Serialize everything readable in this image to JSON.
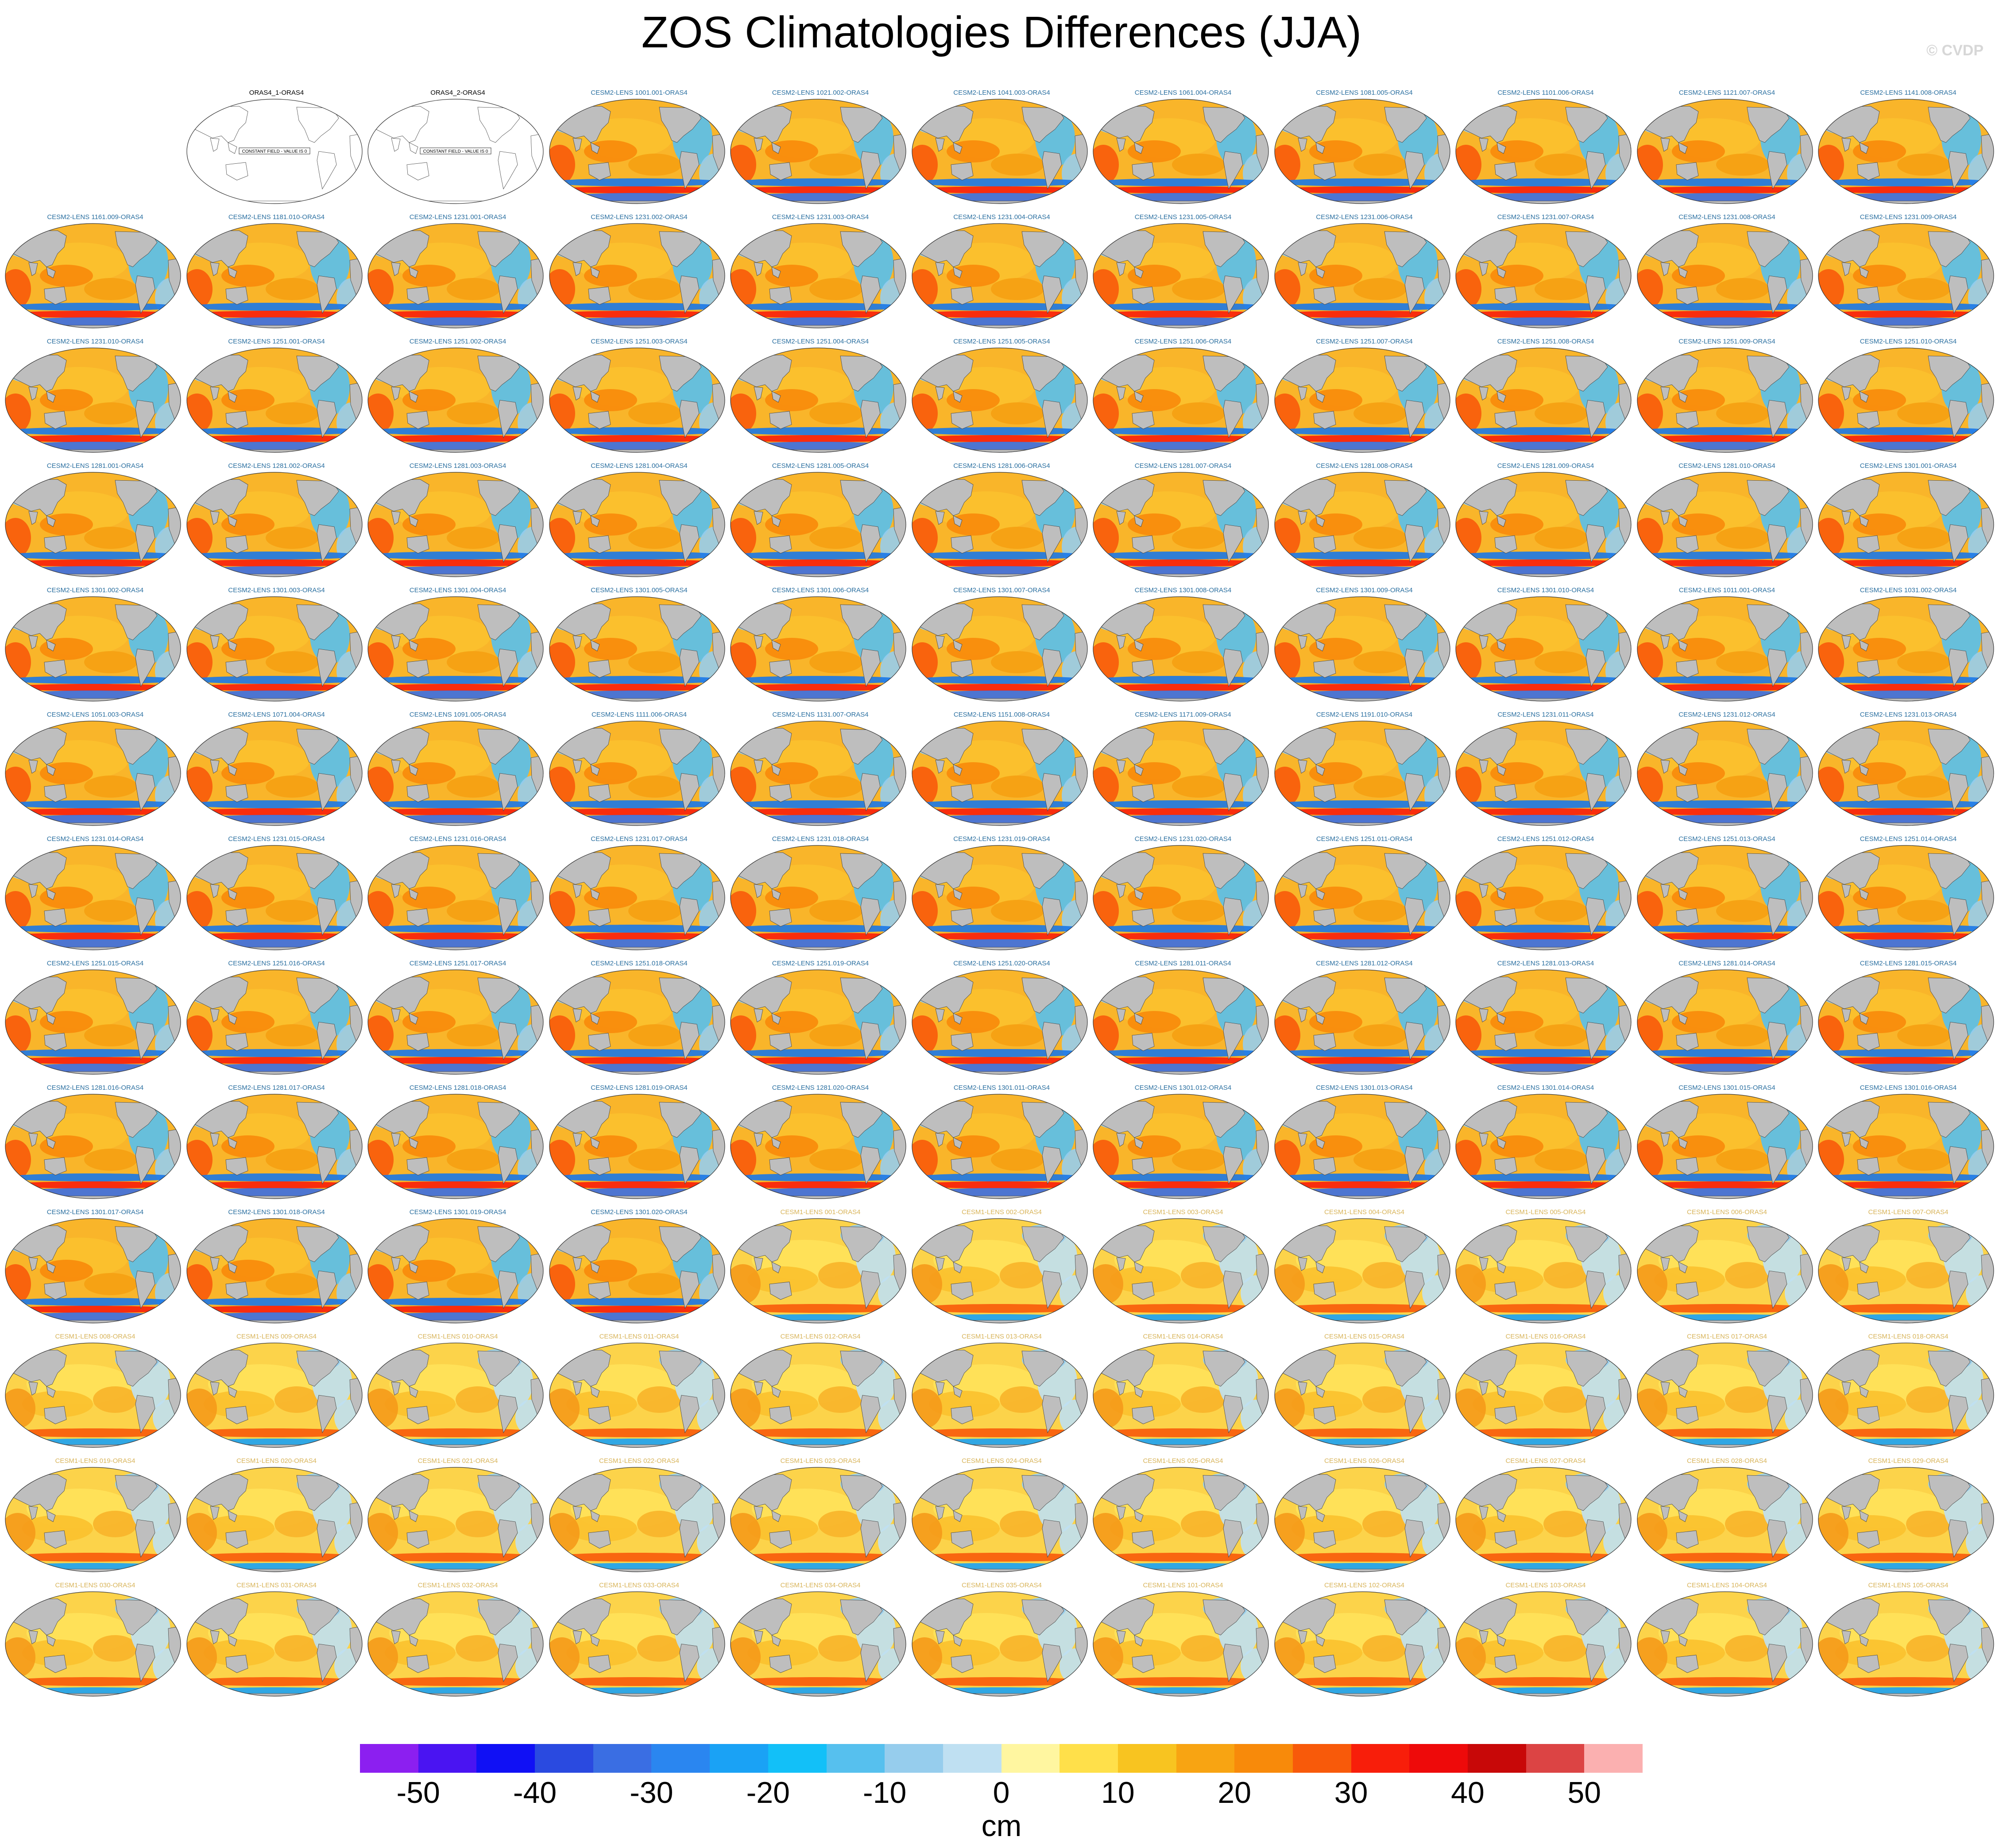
{
  "title": "ZOS Climatologies Differences (JJA)",
  "watermark": "© CVDP",
  "colors": {
    "land": "#bebebe",
    "cesm2_label": "#2a6fa0",
    "cesm1_label": "#d8b45a",
    "oras_label": "#000000"
  },
  "panels": [
    {
      "label": "",
      "kind": "empty"
    },
    {
      "label": "ORAS4_1-ORAS4",
      "kind": "constant",
      "note": "CONSTANT FIELD - VALUE IS 0"
    },
    {
      "label": "ORAS4_2-ORAS4",
      "kind": "constant",
      "note": "CONSTANT FIELD - VALUE IS 0"
    },
    {
      "label": "CESM2-LENS 1001.001-ORAS4",
      "kind": "cesm2"
    },
    {
      "label": "CESM2-LENS 1021.002-ORAS4",
      "kind": "cesm2"
    },
    {
      "label": "CESM2-LENS 1041.003-ORAS4",
      "kind": "cesm2"
    },
    {
      "label": "CESM2-LENS 1061.004-ORAS4",
      "kind": "cesm2"
    },
    {
      "label": "CESM2-LENS 1081.005-ORAS4",
      "kind": "cesm2"
    },
    {
      "label": "CESM2-LENS 1101.006-ORAS4",
      "kind": "cesm2"
    },
    {
      "label": "CESM2-LENS 1121.007-ORAS4",
      "kind": "cesm2"
    },
    {
      "label": "CESM2-LENS 1141.008-ORAS4",
      "kind": "cesm2"
    },
    {
      "label": "CESM2-LENS 1161.009-ORAS4",
      "kind": "cesm2"
    },
    {
      "label": "CESM2-LENS 1181.010-ORAS4",
      "kind": "cesm2"
    },
    {
      "label": "CESM2-LENS 1231.001-ORAS4",
      "kind": "cesm2"
    },
    {
      "label": "CESM2-LENS 1231.002-ORAS4",
      "kind": "cesm2"
    },
    {
      "label": "CESM2-LENS 1231.003-ORAS4",
      "kind": "cesm2"
    },
    {
      "label": "CESM2-LENS 1231.004-ORAS4",
      "kind": "cesm2"
    },
    {
      "label": "CESM2-LENS 1231.005-ORAS4",
      "kind": "cesm2"
    },
    {
      "label": "CESM2-LENS 1231.006-ORAS4",
      "kind": "cesm2"
    },
    {
      "label": "CESM2-LENS 1231.007-ORAS4",
      "kind": "cesm2"
    },
    {
      "label": "CESM2-LENS 1231.008-ORAS4",
      "kind": "cesm2"
    },
    {
      "label": "CESM2-LENS 1231.009-ORAS4",
      "kind": "cesm2"
    },
    {
      "label": "CESM2-LENS 1231.010-ORAS4",
      "kind": "cesm2"
    },
    {
      "label": "CESM2-LENS 1251.001-ORAS4",
      "kind": "cesm2"
    },
    {
      "label": "CESM2-LENS 1251.002-ORAS4",
      "kind": "cesm2"
    },
    {
      "label": "CESM2-LENS 1251.003-ORAS4",
      "kind": "cesm2"
    },
    {
      "label": "CESM2-LENS 1251.004-ORAS4",
      "kind": "cesm2"
    },
    {
      "label": "CESM2-LENS 1251.005-ORAS4",
      "kind": "cesm2"
    },
    {
      "label": "CESM2-LENS 1251.006-ORAS4",
      "kind": "cesm2"
    },
    {
      "label": "CESM2-LENS 1251.007-ORAS4",
      "kind": "cesm2"
    },
    {
      "label": "CESM2-LENS 1251.008-ORAS4",
      "kind": "cesm2"
    },
    {
      "label": "CESM2-LENS 1251.009-ORAS4",
      "kind": "cesm2"
    },
    {
      "label": "CESM2-LENS 1251.010-ORAS4",
      "kind": "cesm2"
    },
    {
      "label": "CESM2-LENS 1281.001-ORAS4",
      "kind": "cesm2"
    },
    {
      "label": "CESM2-LENS 1281.002-ORAS4",
      "kind": "cesm2"
    },
    {
      "label": "CESM2-LENS 1281.003-ORAS4",
      "kind": "cesm2"
    },
    {
      "label": "CESM2-LENS 1281.004-ORAS4",
      "kind": "cesm2"
    },
    {
      "label": "CESM2-LENS 1281.005-ORAS4",
      "kind": "cesm2"
    },
    {
      "label": "CESM2-LENS 1281.006-ORAS4",
      "kind": "cesm2"
    },
    {
      "label": "CESM2-LENS 1281.007-ORAS4",
      "kind": "cesm2"
    },
    {
      "label": "CESM2-LENS 1281.008-ORAS4",
      "kind": "cesm2"
    },
    {
      "label": "CESM2-LENS 1281.009-ORAS4",
      "kind": "cesm2"
    },
    {
      "label": "CESM2-LENS 1281.010-ORAS4",
      "kind": "cesm2"
    },
    {
      "label": "CESM2-LENS 1301.001-ORAS4",
      "kind": "cesm2"
    },
    {
      "label": "CESM2-LENS 1301.002-ORAS4",
      "kind": "cesm2"
    },
    {
      "label": "CESM2-LENS 1301.003-ORAS4",
      "kind": "cesm2"
    },
    {
      "label": "CESM2-LENS 1301.004-ORAS4",
      "kind": "cesm2"
    },
    {
      "label": "CESM2-LENS 1301.005-ORAS4",
      "kind": "cesm2"
    },
    {
      "label": "CESM2-LENS 1301.006-ORAS4",
      "kind": "cesm2"
    },
    {
      "label": "CESM2-LENS 1301.007-ORAS4",
      "kind": "cesm2"
    },
    {
      "label": "CESM2-LENS 1301.008-ORAS4",
      "kind": "cesm2"
    },
    {
      "label": "CESM2-LENS 1301.009-ORAS4",
      "kind": "cesm2"
    },
    {
      "label": "CESM2-LENS 1301.010-ORAS4",
      "kind": "cesm2"
    },
    {
      "label": "CESM2-LENS 1011.001-ORAS4",
      "kind": "cesm2"
    },
    {
      "label": "CESM2-LENS 1031.002-ORAS4",
      "kind": "cesm2"
    },
    {
      "label": "CESM2-LENS 1051.003-ORAS4",
      "kind": "cesm2"
    },
    {
      "label": "CESM2-LENS 1071.004-ORAS4",
      "kind": "cesm2"
    },
    {
      "label": "CESM2-LENS 1091.005-ORAS4",
      "kind": "cesm2"
    },
    {
      "label": "CESM2-LENS 1111.006-ORAS4",
      "kind": "cesm2"
    },
    {
      "label": "CESM2-LENS 1131.007-ORAS4",
      "kind": "cesm2"
    },
    {
      "label": "CESM2-LENS 1151.008-ORAS4",
      "kind": "cesm2"
    },
    {
      "label": "CESM2-LENS 1171.009-ORAS4",
      "kind": "cesm2"
    },
    {
      "label": "CESM2-LENS 1191.010-ORAS4",
      "kind": "cesm2"
    },
    {
      "label": "CESM2-LENS 1231.011-ORAS4",
      "kind": "cesm2"
    },
    {
      "label": "CESM2-LENS 1231.012-ORAS4",
      "kind": "cesm2"
    },
    {
      "label": "CESM2-LENS 1231.013-ORAS4",
      "kind": "cesm2"
    },
    {
      "label": "CESM2-LENS 1231.014-ORAS4",
      "kind": "cesm2"
    },
    {
      "label": "CESM2-LENS 1231.015-ORAS4",
      "kind": "cesm2"
    },
    {
      "label": "CESM2-LENS 1231.016-ORAS4",
      "kind": "cesm2"
    },
    {
      "label": "CESM2-LENS 1231.017-ORAS4",
      "kind": "cesm2"
    },
    {
      "label": "CESM2-LENS 1231.018-ORAS4",
      "kind": "cesm2"
    },
    {
      "label": "CESM2-LENS 1231.019-ORAS4",
      "kind": "cesm2"
    },
    {
      "label": "CESM2-LENS 1231.020-ORAS4",
      "kind": "cesm2"
    },
    {
      "label": "CESM2-LENS 1251.011-ORAS4",
      "kind": "cesm2"
    },
    {
      "label": "CESM2-LENS 1251.012-ORAS4",
      "kind": "cesm2"
    },
    {
      "label": "CESM2-LENS 1251.013-ORAS4",
      "kind": "cesm2"
    },
    {
      "label": "CESM2-LENS 1251.014-ORAS4",
      "kind": "cesm2"
    },
    {
      "label": "CESM2-LENS 1251.015-ORAS4",
      "kind": "cesm2"
    },
    {
      "label": "CESM2-LENS 1251.016-ORAS4",
      "kind": "cesm2"
    },
    {
      "label": "CESM2-LENS 1251.017-ORAS4",
      "kind": "cesm2"
    },
    {
      "label": "CESM2-LENS 1251.018-ORAS4",
      "kind": "cesm2"
    },
    {
      "label": "CESM2-LENS 1251.019-ORAS4",
      "kind": "cesm2"
    },
    {
      "label": "CESM2-LENS 1251.020-ORAS4",
      "kind": "cesm2"
    },
    {
      "label": "CESM2-LENS 1281.011-ORAS4",
      "kind": "cesm2"
    },
    {
      "label": "CESM2-LENS 1281.012-ORAS4",
      "kind": "cesm2"
    },
    {
      "label": "CESM2-LENS 1281.013-ORAS4",
      "kind": "cesm2"
    },
    {
      "label": "CESM2-LENS 1281.014-ORAS4",
      "kind": "cesm2"
    },
    {
      "label": "CESM2-LENS 1281.015-ORAS4",
      "kind": "cesm2"
    },
    {
      "label": "CESM2-LENS 1281.016-ORAS4",
      "kind": "cesm2"
    },
    {
      "label": "CESM2-LENS 1281.017-ORAS4",
      "kind": "cesm2"
    },
    {
      "label": "CESM2-LENS 1281.018-ORAS4",
      "kind": "cesm2"
    },
    {
      "label": "CESM2-LENS 1281.019-ORAS4",
      "kind": "cesm2"
    },
    {
      "label": "CESM2-LENS 1281.020-ORAS4",
      "kind": "cesm2"
    },
    {
      "label": "CESM2-LENS 1301.011-ORAS4",
      "kind": "cesm2"
    },
    {
      "label": "CESM2-LENS 1301.012-ORAS4",
      "kind": "cesm2"
    },
    {
      "label": "CESM2-LENS 1301.013-ORAS4",
      "kind": "cesm2"
    },
    {
      "label": "CESM2-LENS 1301.014-ORAS4",
      "kind": "cesm2"
    },
    {
      "label": "CESM2-LENS 1301.015-ORAS4",
      "kind": "cesm2"
    },
    {
      "label": "CESM2-LENS 1301.016-ORAS4",
      "kind": "cesm2"
    },
    {
      "label": "CESM2-LENS 1301.017-ORAS4",
      "kind": "cesm2"
    },
    {
      "label": "CESM2-LENS 1301.018-ORAS4",
      "kind": "cesm2"
    },
    {
      "label": "CESM2-LENS 1301.019-ORAS4",
      "kind": "cesm2"
    },
    {
      "label": "CESM2-LENS 1301.020-ORAS4",
      "kind": "cesm2"
    },
    {
      "label": "CESM1-LENS 001-ORAS4",
      "kind": "cesm1"
    },
    {
      "label": "CESM1-LENS 002-ORAS4",
      "kind": "cesm1"
    },
    {
      "label": "CESM1-LENS 003-ORAS4",
      "kind": "cesm1"
    },
    {
      "label": "CESM1-LENS 004-ORAS4",
      "kind": "cesm1"
    },
    {
      "label": "CESM1-LENS 005-ORAS4",
      "kind": "cesm1"
    },
    {
      "label": "CESM1-LENS 006-ORAS4",
      "kind": "cesm1"
    },
    {
      "label": "CESM1-LENS 007-ORAS4",
      "kind": "cesm1"
    },
    {
      "label": "CESM1-LENS 008-ORAS4",
      "kind": "cesm1"
    },
    {
      "label": "CESM1-LENS 009-ORAS4",
      "kind": "cesm1"
    },
    {
      "label": "CESM1-LENS 010-ORAS4",
      "kind": "cesm1"
    },
    {
      "label": "CESM1-LENS 011-ORAS4",
      "kind": "cesm1"
    },
    {
      "label": "CESM1-LENS 012-ORAS4",
      "kind": "cesm1"
    },
    {
      "label": "CESM1-LENS 013-ORAS4",
      "kind": "cesm1"
    },
    {
      "label": "CESM1-LENS 014-ORAS4",
      "kind": "cesm1"
    },
    {
      "label": "CESM1-LENS 015-ORAS4",
      "kind": "cesm1"
    },
    {
      "label": "CESM1-LENS 016-ORAS4",
      "kind": "cesm1"
    },
    {
      "label": "CESM1-LENS 017-ORAS4",
      "kind": "cesm1"
    },
    {
      "label": "CESM1-LENS 018-ORAS4",
      "kind": "cesm1"
    },
    {
      "label": "CESM1-LENS 019-ORAS4",
      "kind": "cesm1"
    },
    {
      "label": "CESM1-LENS 020-ORAS4",
      "kind": "cesm1"
    },
    {
      "label": "CESM1-LENS 021-ORAS4",
      "kind": "cesm1"
    },
    {
      "label": "CESM1-LENS 022-ORAS4",
      "kind": "cesm1"
    },
    {
      "label": "CESM1-LENS 023-ORAS4",
      "kind": "cesm1"
    },
    {
      "label": "CESM1-LENS 024-ORAS4",
      "kind": "cesm1"
    },
    {
      "label": "CESM1-LENS 025-ORAS4",
      "kind": "cesm1"
    },
    {
      "label": "CESM1-LENS 026-ORAS4",
      "kind": "cesm1"
    },
    {
      "label": "CESM1-LENS 027-ORAS4",
      "kind": "cesm1"
    },
    {
      "label": "CESM1-LENS 028-ORAS4",
      "kind": "cesm1"
    },
    {
      "label": "CESM1-LENS 029-ORAS4",
      "kind": "cesm1"
    },
    {
      "label": "CESM1-LENS 030-ORAS4",
      "kind": "cesm1"
    },
    {
      "label": "CESM1-LENS 031-ORAS4",
      "kind": "cesm1"
    },
    {
      "label": "CESM1-LENS 032-ORAS4",
      "kind": "cesm1"
    },
    {
      "label": "CESM1-LENS 033-ORAS4",
      "kind": "cesm1"
    },
    {
      "label": "CESM1-LENS 034-ORAS4",
      "kind": "cesm1"
    },
    {
      "label": "CESM1-LENS 035-ORAS4",
      "kind": "cesm1"
    },
    {
      "label": "CESM1-LENS 101-ORAS4",
      "kind": "cesm1"
    },
    {
      "label": "CESM1-LENS 102-ORAS4",
      "kind": "cesm1"
    },
    {
      "label": "CESM1-LENS 103-ORAS4",
      "kind": "cesm1"
    },
    {
      "label": "CESM1-LENS 104-ORAS4",
      "kind": "cesm1"
    },
    {
      "label": "CESM1-LENS 105-ORAS4",
      "kind": "cesm1"
    }
  ],
  "colorbar": {
    "colors": [
      "#8c1ff0",
      "#4a14f2",
      "#1010f5",
      "#2a4ae0",
      "#3a6ee3",
      "#2a86f0",
      "#1aa2f5",
      "#12c0f8",
      "#56c0ee",
      "#96cded",
      "#bfe0f2",
      "#fff6a0",
      "#ffe04a",
      "#f8c420",
      "#f8a412",
      "#f88a0a",
      "#f85a0a",
      "#f81e0a",
      "#ee0a0a",
      "#c80808",
      "#dc4444",
      "#fbb0b0"
    ],
    "tick_labels": [
      "-50",
      "-40",
      "-30",
      "-20",
      "-10",
      "0",
      "10",
      "20",
      "30",
      "40",
      "50"
    ],
    "units": "cm"
  }
}
